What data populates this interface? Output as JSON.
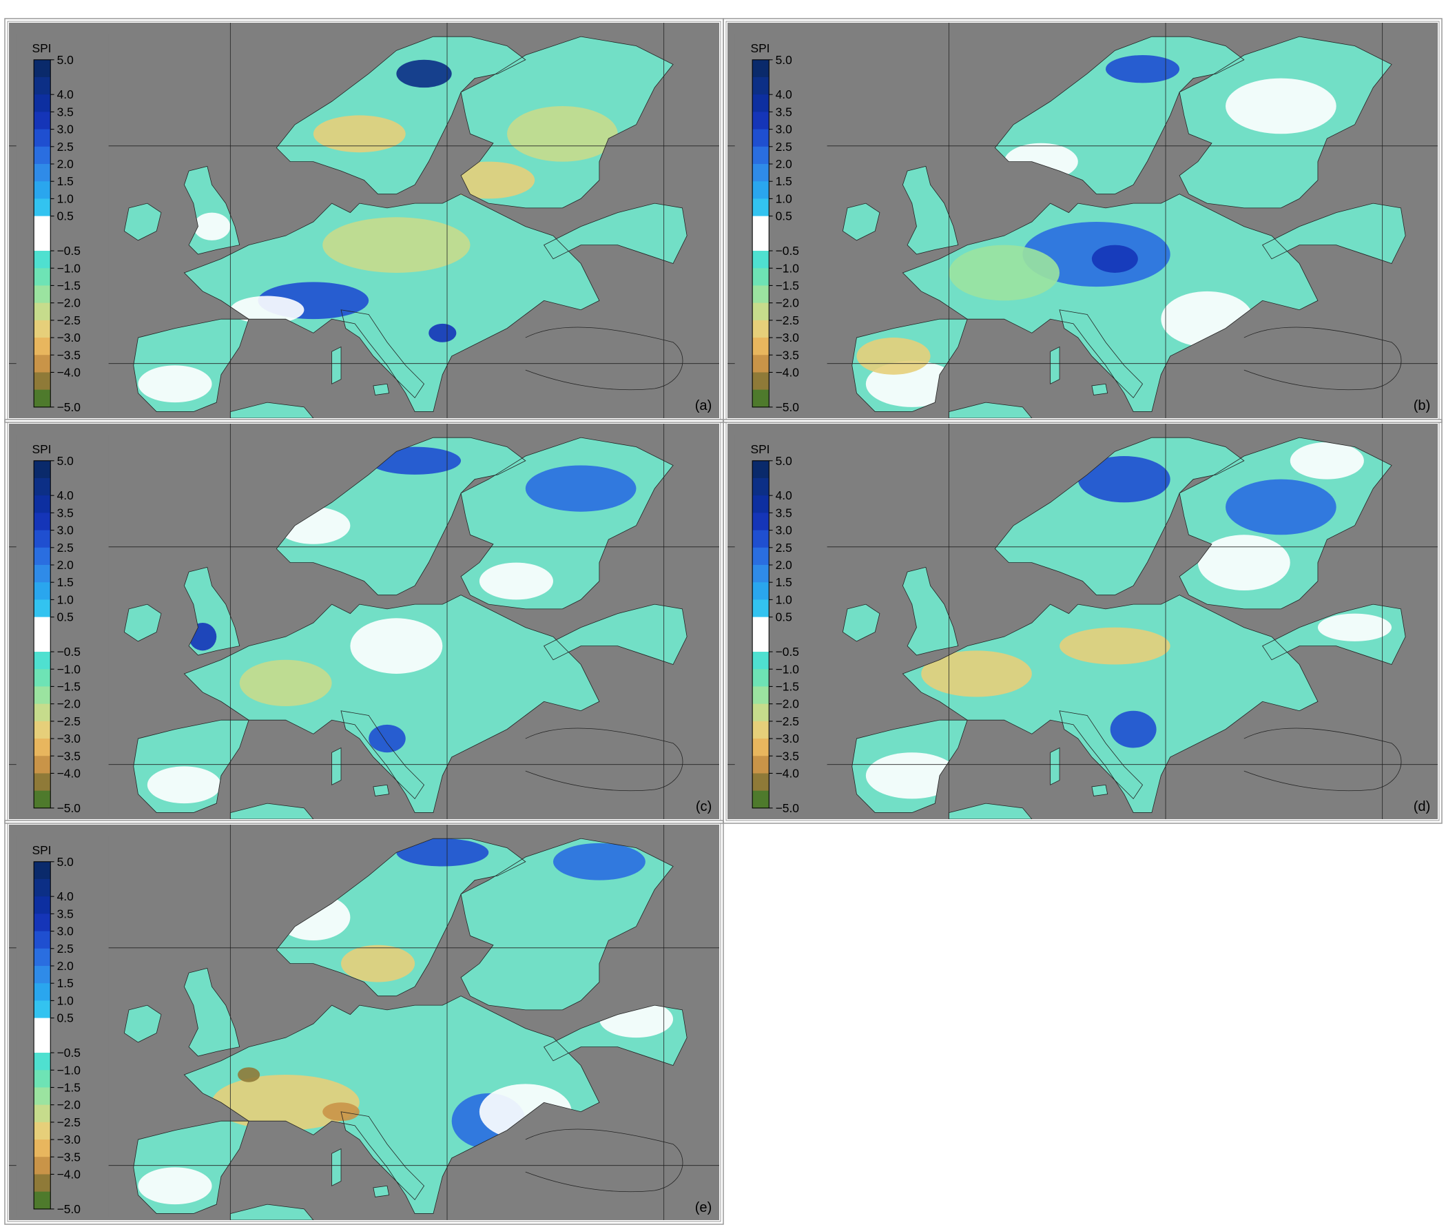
{
  "colorbar": {
    "title": "SPI",
    "lim": [
      -5,
      5
    ],
    "ticks": [
      {
        "value": 5,
        "label": "5.0"
      },
      {
        "value": 4,
        "label": "4.0"
      },
      {
        "value": 3.5,
        "label": "3.5"
      },
      {
        "value": 3,
        "label": "3.0"
      },
      {
        "value": 2.5,
        "label": "2.5"
      },
      {
        "value": 2,
        "label": "2.0"
      },
      {
        "value": 1.5,
        "label": "1.5"
      },
      {
        "value": 1,
        "label": "1.0"
      },
      {
        "value": 0.5,
        "label": "0.5"
      },
      {
        "value": -0.5,
        "label": "−0.5"
      },
      {
        "value": -1,
        "label": "−1.0"
      },
      {
        "value": -1.5,
        "label": "−1.5"
      },
      {
        "value": -2,
        "label": "−2.0"
      },
      {
        "value": -2.5,
        "label": "−2.5"
      },
      {
        "value": -3,
        "label": "−3.0"
      },
      {
        "value": -3.5,
        "label": "−3.5"
      },
      {
        "value": -4,
        "label": "−4.0"
      },
      {
        "value": -5,
        "label": "−5.0"
      }
    ],
    "colors": [
      "#0a2a6b",
      "#0c2f86",
      "#0d2fa0",
      "#1535b8",
      "#1f4fd0",
      "#2a6ee0",
      "#2f8be8",
      "#2aa6ee",
      "#33c3f0",
      "#ffffff",
      "#ffffff",
      "#4fe0d0",
      "#6ee3b5",
      "#9be3a0",
      "#c6dc8c",
      "#e6cf7a",
      "#e8b65e",
      "#c99448",
      "#8f7a38",
      "#4e7a2c"
    ]
  },
  "panels": [
    {
      "label": "(a)"
    },
    {
      "label": "(b)"
    },
    {
      "label": "(c)"
    },
    {
      "label": "(d)"
    },
    {
      "label": "(e)"
    }
  ]
}
